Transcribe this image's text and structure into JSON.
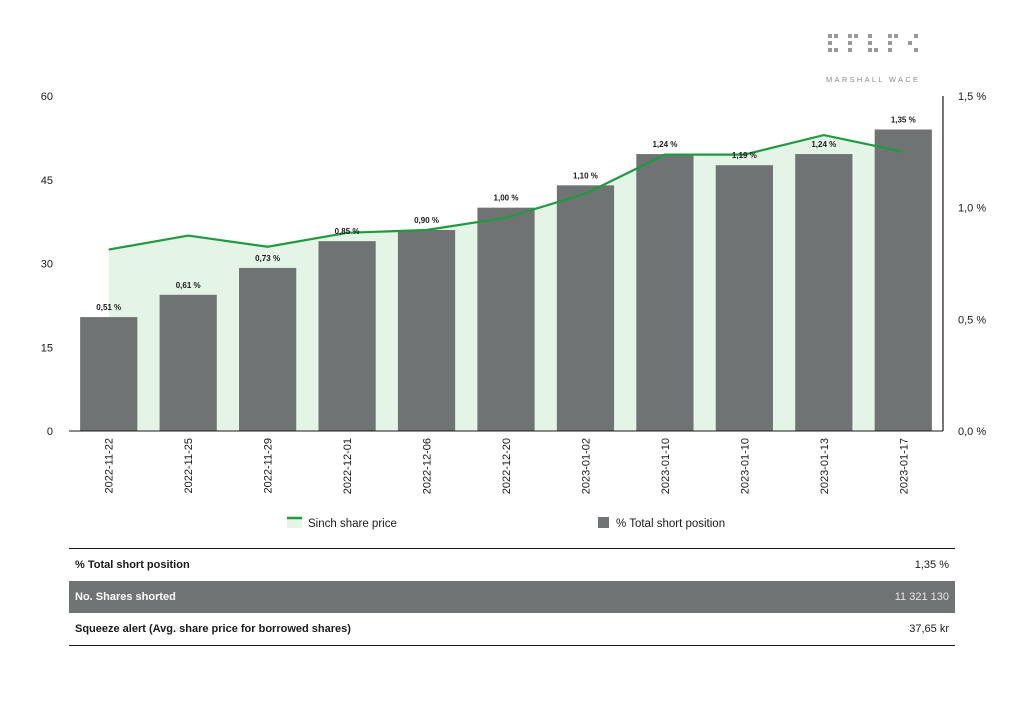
{
  "logo": {
    "brand": "MARSHALL WACE"
  },
  "chart_data": {
    "type": "bar",
    "categories": [
      "2022-11-22",
      "2022-11-25",
      "2022-11-29",
      "2022-12-01",
      "2022-12-06",
      "2022-12-20",
      "2023-01-02",
      "2023-01-10",
      "2023-01-10",
      "2023-01-13",
      "2023-01-17"
    ],
    "series": [
      {
        "name": "% Total short position",
        "axis": "right",
        "values": [
          0.51,
          0.61,
          0.73,
          0.85,
          0.9,
          1.0,
          1.1,
          1.24,
          1.19,
          1.24,
          1.35
        ],
        "labels": [
          "0,51 %",
          "0,61 %",
          "0,73 %",
          "0,85 %",
          "0,90 %",
          "1,00 %",
          "1,10 %",
          "1,24 %",
          "1,19 %",
          "1,24 %",
          "1,35 %"
        ],
        "color": "#6f7374"
      },
      {
        "name": "Sinch share price",
        "axis": "left",
        "type": "area",
        "values": [
          32.5,
          35.0,
          33.0,
          35.5,
          36.0,
          38.2,
          42.5,
          49.5,
          49.5,
          53.0,
          50.0
        ],
        "color": "#1e9b3c",
        "fill": "#e4f4e6"
      }
    ],
    "left_axis": {
      "ylim": [
        0,
        60
      ],
      "ticks": [
        "0",
        "15",
        "30",
        "45",
        "60"
      ]
    },
    "right_axis": {
      "ylim": [
        0,
        1.5
      ],
      "ticks": [
        "0,0 %",
        "0,5 %",
        "1,0 %",
        "1,5 %"
      ]
    },
    "legend": "bottom"
  },
  "summary": [
    {
      "label": "% Total short position",
      "value": "1,35 %"
    },
    {
      "label": "No. Shares shorted",
      "value": "11 321 130"
    },
    {
      "label": "Squeeze alert (Avg. share price for borrowed shares)",
      "value": "37,65 kr"
    }
  ]
}
